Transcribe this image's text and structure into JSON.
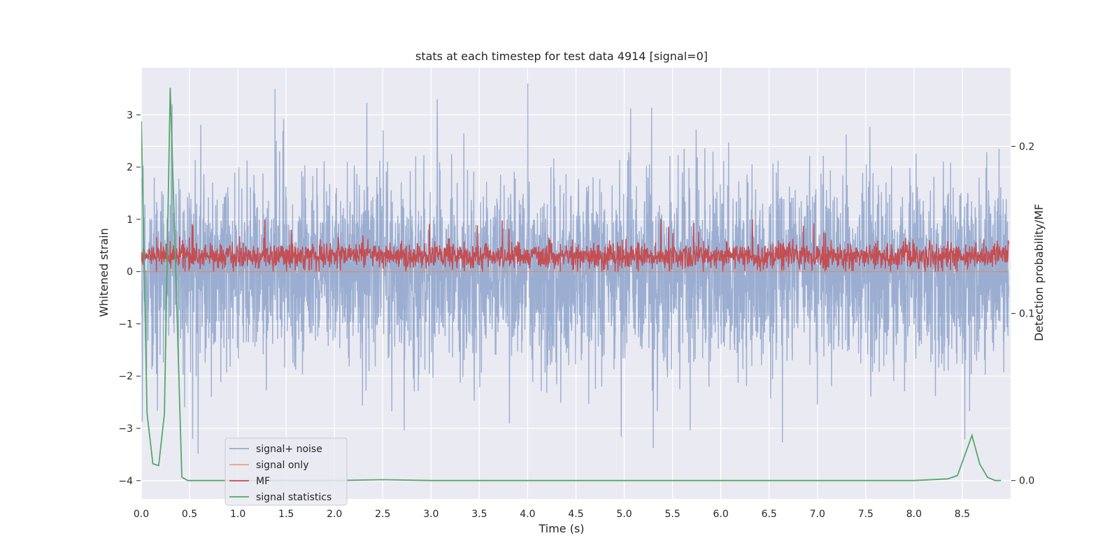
{
  "chart_data": {
    "type": "line",
    "title": "stats at each timestep for test data 4914 [signal=0]",
    "xlabel": "Time (s)",
    "ylabel": "Whitened strain",
    "y2label": "Detection probability/MF",
    "xlim": [
      0.0,
      9.0
    ],
    "ylim": [
      -4.35,
      3.9
    ],
    "y2lim": [
      -0.011,
      0.247
    ],
    "xticks": [
      "0.0",
      "0.5",
      "1.0",
      "1.5",
      "2.0",
      "2.5",
      "3.0",
      "3.5",
      "4.0",
      "4.5",
      "5.0",
      "5.5",
      "6.0",
      "6.5",
      "7.0",
      "7.5",
      "8.0",
      "8.5"
    ],
    "yticks": [
      "3",
      "2",
      "1",
      "0",
      "−1",
      "−2",
      "−3",
      "−4"
    ],
    "y2ticks": [
      "0.2",
      "0.1",
      "0.0"
    ],
    "grid": true,
    "legend_position": "lower-left",
    "series": [
      {
        "name": "signal+ noise",
        "color": "#4c72b0",
        "axis": "left",
        "shape": "noise band approx. -2.5 to 2.5, peaks ~3.6"
      },
      {
        "name": "signal only",
        "color": "#dd8452",
        "axis": "left",
        "values": "flat at 0"
      },
      {
        "name": "MF",
        "color": "#c44e52",
        "axis": "left",
        "shape": "noisy band approx. 0.0 to 0.8"
      },
      {
        "name": "signal statistics",
        "color": "#55a868",
        "axis": "right",
        "x": [
          0.0,
          0.06,
          0.12,
          0.18,
          0.24,
          0.3,
          0.36,
          0.42,
          0.48,
          1.0,
          2.0,
          2.5,
          3.0,
          4.0,
          5.0,
          6.0,
          7.0,
          8.0,
          8.35,
          8.45,
          8.6,
          8.68,
          8.76,
          8.84,
          8.9
        ],
        "values": [
          0.215,
          0.04,
          0.01,
          0.009,
          0.04,
          0.235,
          0.12,
          0.002,
          0.0,
          0.0,
          0.0,
          0.0005,
          0.0,
          0.0,
          0.0,
          0.0,
          0.0,
          0.0,
          0.001,
          0.003,
          0.027,
          0.01,
          0.002,
          0.0,
          0.0
        ]
      }
    ]
  }
}
